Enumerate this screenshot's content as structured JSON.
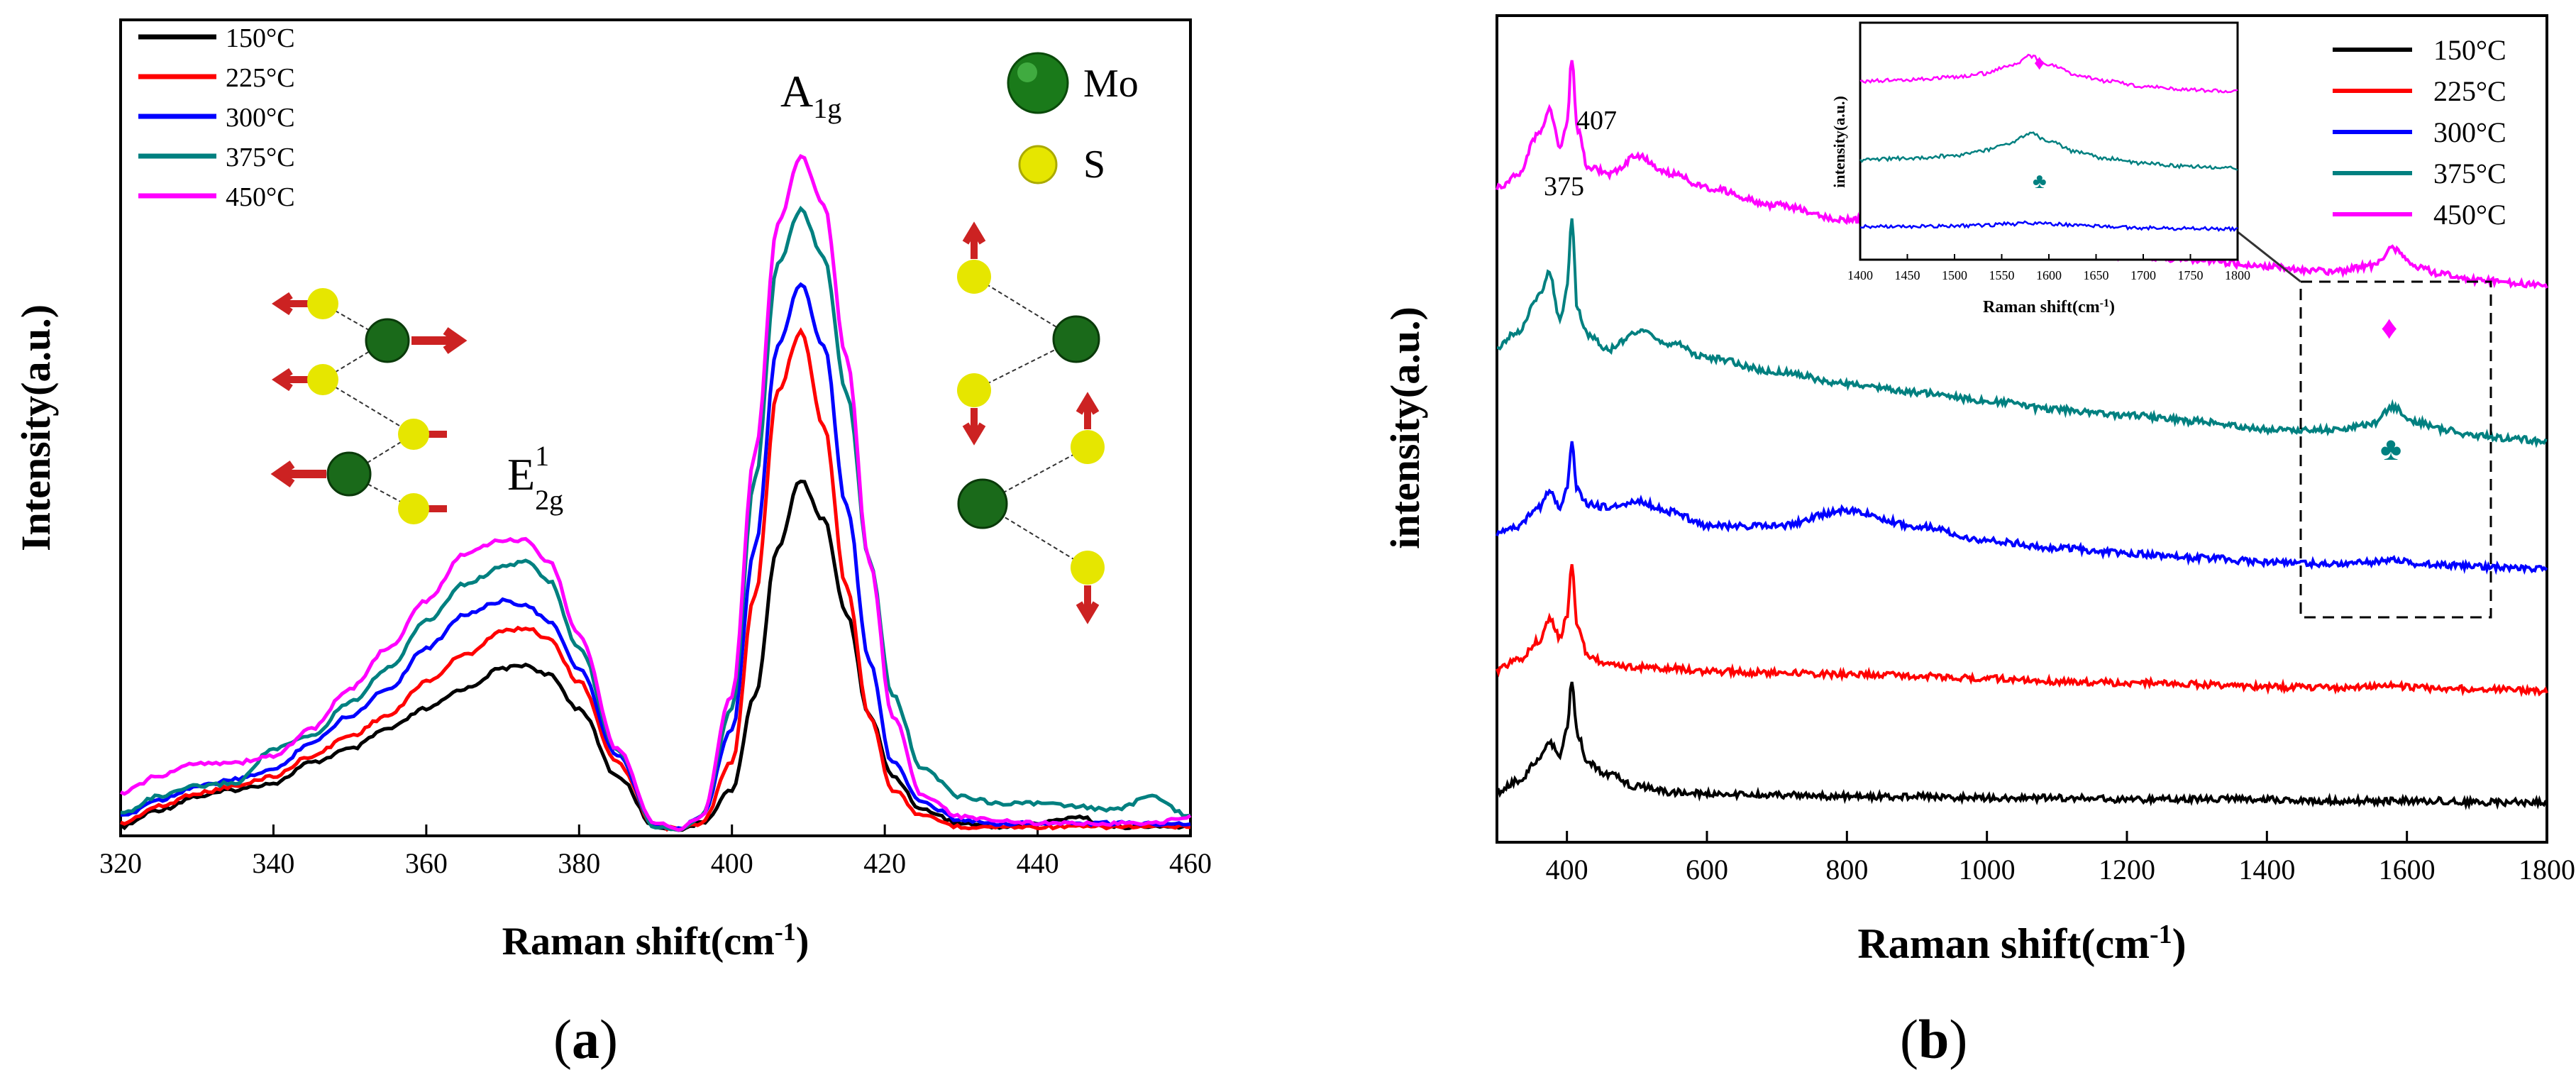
{
  "panels": {
    "a": {
      "label_open": "(",
      "letter": "a",
      "label_close": ")"
    },
    "b": {
      "label_open": "(",
      "letter": "b",
      "label_close": ")"
    }
  },
  "legend": {
    "temps": [
      "150°C",
      "225°C",
      "300°C",
      "375°C",
      "450°C"
    ],
    "colors": [
      "#000000",
      "#ff0000",
      "#0000ff",
      "#008080",
      "#ff00ff"
    ]
  },
  "atoms": {
    "mo_label": "Mo",
    "s_label": "S",
    "mo_color": "#1a7a1a",
    "s_color": "#e6e600",
    "arrow_color": "#cc2222"
  },
  "chart_data": [
    {
      "type": "line",
      "panel": "a",
      "xlabel": "Raman shift(cm",
      "xlabel_sup": "-1",
      "xlabel_end": ")",
      "ylabel": "Intensity(a.u.)",
      "xlim": [
        320,
        460
      ],
      "ylim": [
        0,
        1.0
      ],
      "xticks": [
        "320",
        "340",
        "360",
        "380",
        "400",
        "420",
        "440",
        "460"
      ],
      "annotations": {
        "a1g_main": "A",
        "a1g_sub": "1g",
        "e2g_main": "E",
        "e2g_sub": "2g",
        "e2g_sup": "1"
      },
      "x": [
        320,
        325,
        330,
        335,
        340,
        345,
        350,
        355,
        360,
        365,
        370,
        373,
        376,
        380,
        385,
        390,
        393,
        396,
        400,
        403,
        406,
        409,
        412,
        415,
        418,
        421,
        425,
        430,
        435,
        440,
        445,
        450,
        455,
        460
      ],
      "series": [
        {
          "name": "150°C",
          "values": [
            0.005,
            0.03,
            0.05,
            0.06,
            0.07,
            0.1,
            0.12,
            0.15,
            0.18,
            0.21,
            0.24,
            0.245,
            0.23,
            0.18,
            0.08,
            0.005,
            0.002,
            0.01,
            0.06,
            0.2,
            0.42,
            0.52,
            0.46,
            0.32,
            0.17,
            0.08,
            0.03,
            0.01,
            0.005,
            0.01,
            0.02,
            0.005,
            0.005,
            0.005
          ]
        },
        {
          "name": "225°C",
          "values": [
            0.01,
            0.035,
            0.055,
            0.065,
            0.08,
            0.11,
            0.14,
            0.17,
            0.22,
            0.26,
            0.295,
            0.3,
            0.285,
            0.22,
            0.1,
            0.005,
            0.002,
            0.01,
            0.1,
            0.35,
            0.65,
            0.74,
            0.6,
            0.36,
            0.17,
            0.06,
            0.02,
            0.005,
            0.005,
            0.005,
            0.005,
            0.005,
            0.005,
            0.005
          ]
        },
        {
          "name": "300°C",
          "values": [
            0.02,
            0.045,
            0.065,
            0.075,
            0.09,
            0.13,
            0.17,
            0.21,
            0.27,
            0.32,
            0.34,
            0.335,
            0.31,
            0.24,
            0.11,
            0.005,
            0.002,
            0.02,
            0.15,
            0.42,
            0.72,
            0.81,
            0.72,
            0.48,
            0.25,
            0.1,
            0.04,
            0.015,
            0.01,
            0.01,
            0.01,
            0.01,
            0.01,
            0.01
          ]
        },
        {
          "name": "375°C",
          "values": [
            0.025,
            0.05,
            0.065,
            0.07,
            0.12,
            0.14,
            0.19,
            0.24,
            0.31,
            0.365,
            0.39,
            0.4,
            0.37,
            0.27,
            0.12,
            0.005,
            0.002,
            0.02,
            0.18,
            0.52,
            0.84,
            0.92,
            0.85,
            0.65,
            0.4,
            0.2,
            0.09,
            0.05,
            0.04,
            0.04,
            0.035,
            0.03,
            0.05,
            0.02
          ]
        },
        {
          "name": "450°C",
          "values": [
            0.055,
            0.08,
            0.1,
            0.1,
            0.11,
            0.15,
            0.21,
            0.27,
            0.34,
            0.41,
            0.43,
            0.43,
            0.4,
            0.29,
            0.12,
            0.01,
            0.002,
            0.02,
            0.2,
            0.56,
            0.9,
            1.0,
            0.93,
            0.7,
            0.4,
            0.17,
            0.05,
            0.02,
            0.015,
            0.01,
            0.01,
            0.01,
            0.01,
            0.02
          ]
        }
      ]
    },
    {
      "type": "line",
      "panel": "b",
      "xlabel": "Raman shift(cm",
      "xlabel_sup": "-1",
      "xlabel_end": ")",
      "ylabel": "intensity(a.u.)",
      "xlim": [
        300,
        1800
      ],
      "ylim": [
        0,
        5.5
      ],
      "xticks": [
        "400",
        "600",
        "800",
        "1000",
        "1200",
        "1400",
        "1600",
        "1800"
      ],
      "peak_labels": [
        "375",
        "407"
      ],
      "markers": {
        "diamond": "♦",
        "club": "♣"
      },
      "x": [
        300,
        330,
        360,
        375,
        390,
        400,
        407,
        415,
        430,
        460,
        500,
        550,
        600,
        700,
        800,
        900,
        1000,
        1100,
        1200,
        1300,
        1400,
        1500,
        1550,
        1580,
        1610,
        1650,
        1700,
        1750,
        1800
      ],
      "series": [
        {
          "name": "150°C",
          "values": [
            0.2,
            0.28,
            0.42,
            0.55,
            0.45,
            0.62,
            0.98,
            0.6,
            0.4,
            0.32,
            0.24,
            0.2,
            0.19,
            0.18,
            0.17,
            0.17,
            0.16,
            0.16,
            0.15,
            0.15,
            0.15,
            0.14,
            0.14,
            0.14,
            0.14,
            0.14,
            0.13,
            0.13,
            0.13
          ]
        },
        {
          "name": "225°C",
          "values": [
            1.05,
            1.12,
            1.25,
            1.4,
            1.28,
            1.42,
            1.8,
            1.35,
            1.15,
            1.08,
            1.07,
            1.06,
            1.04,
            1.03,
            1.02,
            1.01,
            0.99,
            0.97,
            0.96,
            0.95,
            0.93,
            0.93,
            0.93,
            0.94,
            0.93,
            0.92,
            0.92,
            0.91,
            0.9
          ]
        },
        {
          "name": "300°C",
          "values": [
            2.0,
            2.05,
            2.18,
            2.3,
            2.18,
            2.33,
            2.62,
            2.3,
            2.2,
            2.18,
            2.22,
            2.15,
            2.05,
            2.05,
            2.16,
            2.05,
            1.95,
            1.9,
            1.86,
            1.83,
            1.8,
            1.79,
            1.8,
            1.82,
            1.79,
            1.78,
            1.77,
            1.76,
            1.75
          ]
        },
        {
          "name": "375°C",
          "values": [
            3.3,
            3.4,
            3.65,
            3.82,
            3.48,
            3.7,
            4.2,
            3.55,
            3.38,
            3.28,
            3.4,
            3.32,
            3.22,
            3.12,
            3.04,
            2.98,
            2.92,
            2.86,
            2.82,
            2.78,
            2.72,
            2.72,
            2.76,
            2.88,
            2.78,
            2.72,
            2.68,
            2.66,
            2.64
          ]
        },
        {
          "name": "450°C",
          "values": [
            4.4,
            4.5,
            4.78,
            4.95,
            4.7,
            4.85,
            5.3,
            4.8,
            4.55,
            4.5,
            4.62,
            4.5,
            4.4,
            4.28,
            4.18,
            4.1,
            4.04,
            3.98,
            3.93,
            3.9,
            3.85,
            3.82,
            3.86,
            3.98,
            3.86,
            3.8,
            3.76,
            3.74,
            3.72
          ]
        }
      ],
      "inset": {
        "xlabel": "Raman shift(cm",
        "xlabel_sup": "-1",
        "xlabel_end": ")",
        "ylabel": "intensity(a.u.)",
        "xlim": [
          1400,
          1800
        ],
        "xticks": [
          "1400",
          "1450",
          "1500",
          "1550",
          "1600",
          "1650",
          "1700",
          "1750",
          "1800"
        ],
        "x": [
          1400,
          1450,
          1500,
          1530,
          1560,
          1580,
          1600,
          1630,
          1660,
          1700,
          1750,
          1800
        ],
        "series": [
          {
            "name": "300°C",
            "values": [
              0.3,
              0.3,
              0.31,
              0.32,
              0.34,
              0.36,
              0.34,
              0.32,
              0.3,
              0.28,
              0.27,
              0.26
            ]
          },
          {
            "name": "375°C",
            "values": [
              1.35,
              1.38,
              1.42,
              1.5,
              1.62,
              1.78,
              1.65,
              1.48,
              1.38,
              1.3,
              1.25,
              1.22
            ]
          },
          {
            "name": "450°C",
            "values": [
              2.6,
              2.62,
              2.66,
              2.72,
              2.84,
              3.0,
              2.86,
              2.7,
              2.6,
              2.52,
              2.46,
              2.44
            ]
          }
        ],
        "series_colors": [
          "#0000ff",
          "#008080",
          "#ff00ff"
        ]
      }
    }
  ]
}
